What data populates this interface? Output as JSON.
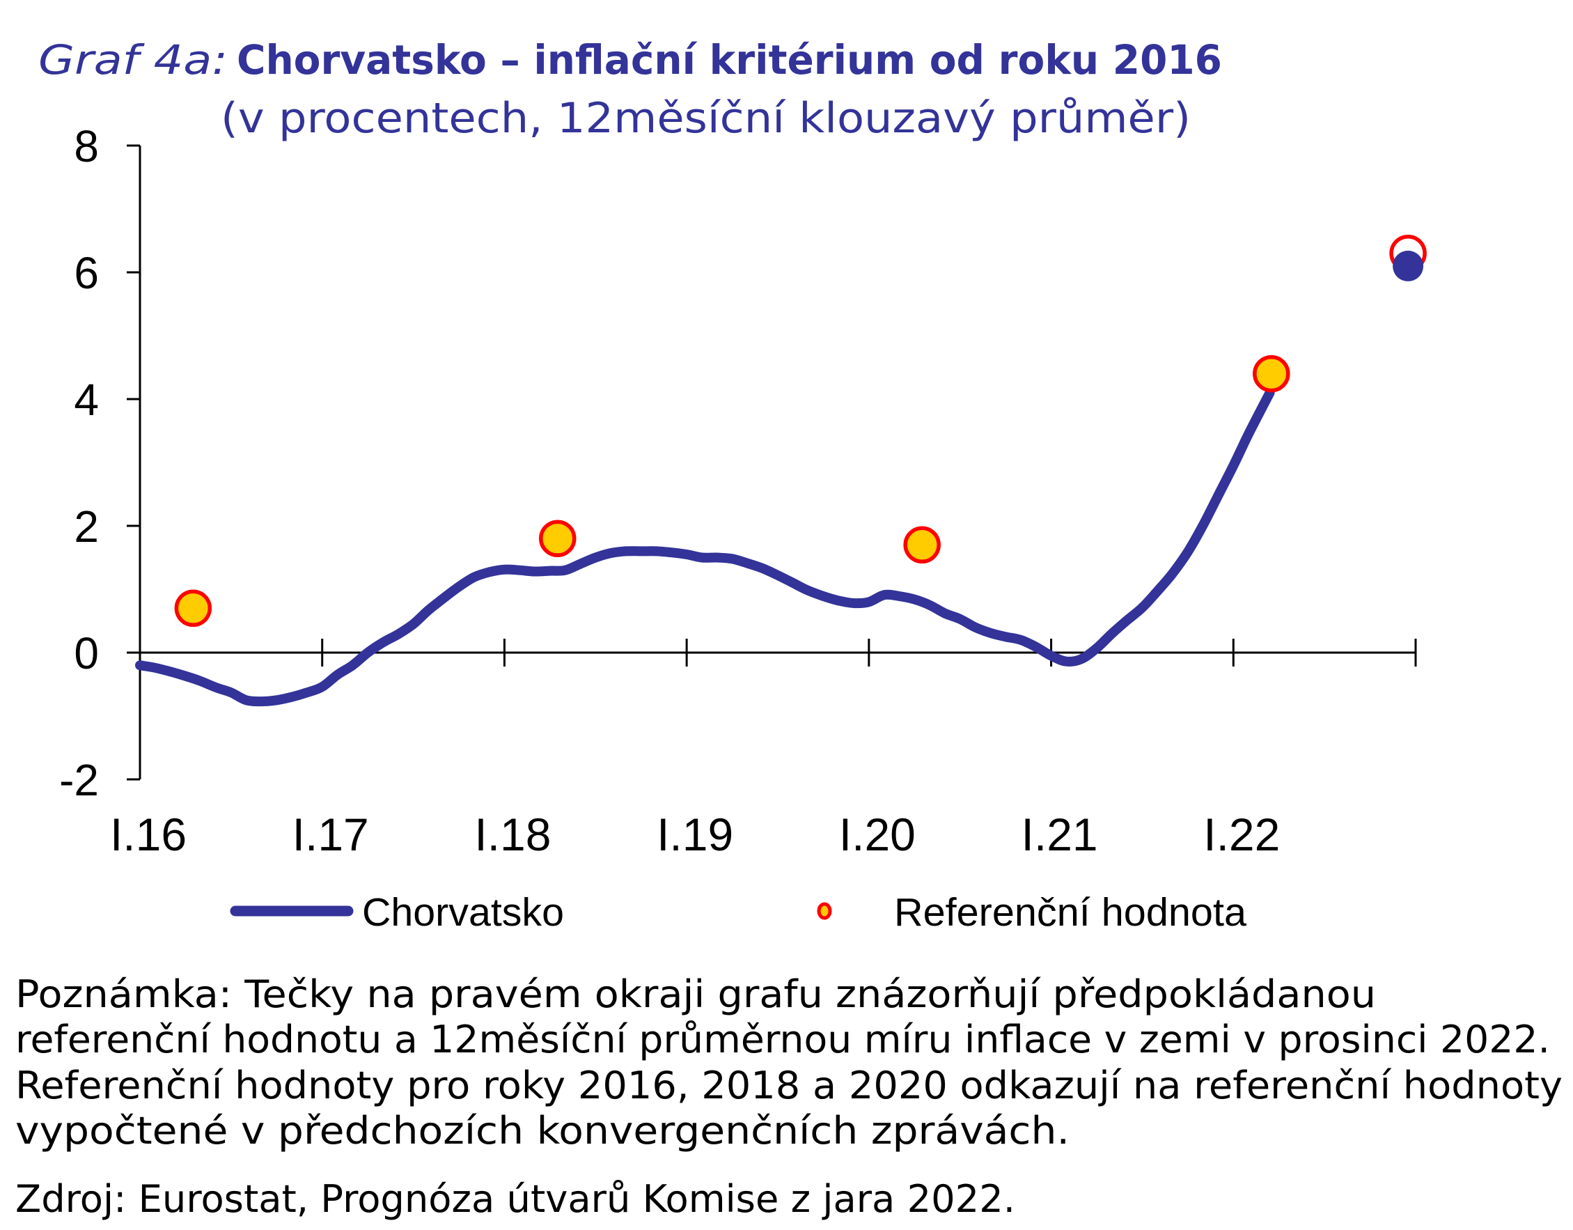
{
  "chart_data": {
    "type": "line",
    "title_prefix": "Graf 4a:",
    "title": "Chorvatsko – inflační kritérium od roku 2016",
    "subtitle": "(v procentech, 12měsíční klouzavý průměr)",
    "xlabel": "",
    "ylabel": "",
    "x_unit": "months since I.16",
    "xlim": [
      0,
      84
    ],
    "ylim": [
      -2,
      8
    ],
    "yticks": [
      8,
      6,
      4,
      2,
      0,
      -2
    ],
    "ytick_labels": [
      "8",
      "6",
      "4",
      "2",
      "0",
      "-2"
    ],
    "xticks": [
      0,
      12,
      24,
      36,
      48,
      60,
      72,
      84
    ],
    "xtick_labels": [
      "I.16",
      "I.17",
      "I.18",
      "I.19",
      "I.20",
      "I.21",
      "I.22",
      ""
    ],
    "grid": false,
    "legend_position": "bottom",
    "series": [
      {
        "name": "Chorvatsko",
        "kind": "line",
        "color": "#333399",
        "x": [
          0,
          1,
          2,
          3,
          4,
          5,
          6,
          7,
          8,
          9,
          10,
          11,
          12,
          13,
          14,
          15,
          16,
          17,
          18,
          19,
          20,
          21,
          22,
          23,
          24,
          25,
          26,
          27,
          28,
          29,
          30,
          31,
          32,
          33,
          34,
          35,
          36,
          37,
          38,
          39,
          40,
          41,
          42,
          43,
          43.9,
          45,
          46,
          47,
          48,
          49,
          50,
          51,
          52,
          53,
          54,
          55,
          56,
          57,
          58,
          59,
          60,
          61,
          62,
          63,
          64,
          65,
          66,
          67,
          68,
          69,
          70,
          71,
          72,
          73,
          74.4
        ],
        "values": [
          -0.2,
          -0.24,
          -0.3,
          -0.37,
          -0.45,
          -0.55,
          -0.63,
          -0.75,
          -0.77,
          -0.75,
          -0.7,
          -0.63,
          -0.54,
          -0.35,
          -0.2,
          0.0,
          0.16,
          0.29,
          0.45,
          0.67,
          0.86,
          1.04,
          1.19,
          1.27,
          1.31,
          1.3,
          1.28,
          1.29,
          1.3,
          1.4,
          1.5,
          1.57,
          1.6,
          1.6,
          1.6,
          1.58,
          1.55,
          1.5,
          1.5,
          1.48,
          1.41,
          1.33,
          1.22,
          1.1,
          0.99,
          0.89,
          0.82,
          0.78,
          0.8,
          0.91,
          0.89,
          0.84,
          0.75,
          0.62,
          0.53,
          0.4,
          0.31,
          0.25,
          0.2,
          0.09,
          -0.05,
          -0.14,
          -0.1,
          0.07,
          0.3,
          0.51,
          0.71,
          0.97,
          1.25,
          1.59,
          2.01,
          2.48,
          2.95,
          3.45,
          4.1
        ]
      },
      {
        "name": "Referenční hodnota",
        "kind": "scatter",
        "fill": "#FFCC00",
        "stroke": "#FF0000",
        "x": [
          3.5,
          27.5,
          51.5,
          74.5
        ],
        "values": [
          0.7,
          1.8,
          1.7,
          4.4
        ]
      }
    ],
    "forecast_points": [
      {
        "name": "Referenční hodnota (prosinec 2022)",
        "x": 83.5,
        "value": 6.3,
        "style": "open-circle",
        "stroke": "#FF0000"
      },
      {
        "name": "Chorvatsko (prosinec 2022)",
        "x": 83.5,
        "value": 6.1,
        "style": "filled-circle",
        "fill": "#333399"
      }
    ]
  },
  "legend": {
    "items": [
      {
        "label": "Chorvatsko",
        "symbol": "line"
      },
      {
        "label": "Referenční hodnota",
        "symbol": "dot"
      }
    ]
  },
  "caption": {
    "note_lines": [
      "Poznámka: Tečky na pravém okraji grafu znázorňují předpokládanou",
      "referenční hodnotu a 12měsíční průměrnou míru inflace v zemi v prosinci 2022.",
      "Referenční hodnoty pro roky 2016, 2018 a 2020 odkazují na referenční hodnoty",
      "vypočtené v předchozích konvergenčních zprávách."
    ],
    "source": "Zdroj: Eurostat, Prognóza útvarů Komise z jara 2022."
  },
  "colors": {
    "title": "#333399",
    "line": "#333399",
    "ref_fill": "#FFCC00",
    "ref_stroke": "#FF0000",
    "axis": "#000000"
  }
}
